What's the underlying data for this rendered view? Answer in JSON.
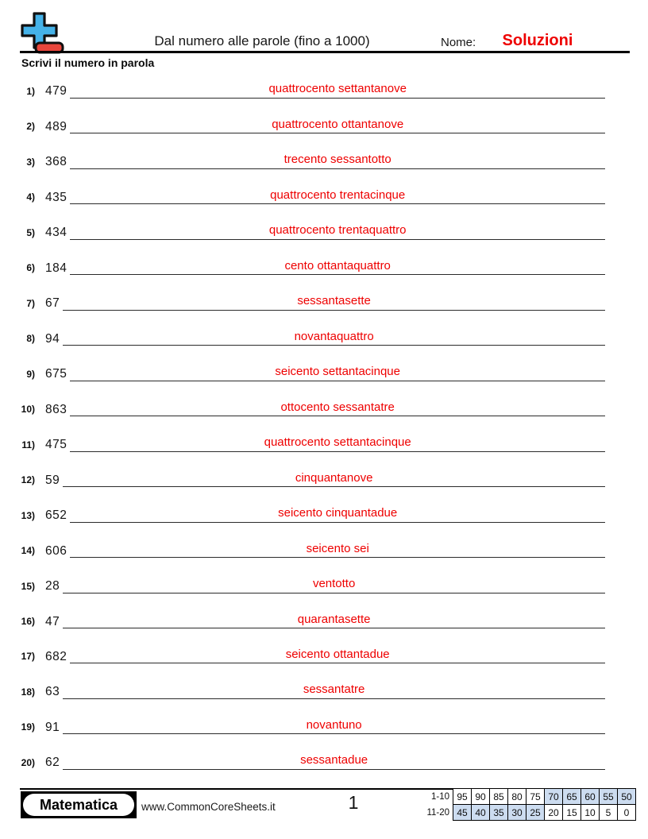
{
  "header": {
    "title": "Dal numero alle parole (fino a 1000)",
    "name_label": "Nome:",
    "name_value": "Soluzioni",
    "instruction": "Scrivi il numero in parola",
    "logo_plus_color": "#45b2e8",
    "logo_minus_color": "#e8463c"
  },
  "answer_color": "#ee0000",
  "problems": [
    {
      "num": "1)",
      "value": "479",
      "answer": "quattrocento settantanove"
    },
    {
      "num": "2)",
      "value": "489",
      "answer": "quattrocento ottantanove"
    },
    {
      "num": "3)",
      "value": "368",
      "answer": "trecento sessantotto"
    },
    {
      "num": "4)",
      "value": "435",
      "answer": "quattrocento trentacinque"
    },
    {
      "num": "5)",
      "value": "434",
      "answer": "quattrocento trentaquattro"
    },
    {
      "num": "6)",
      "value": "184",
      "answer": "cento ottantaquattro"
    },
    {
      "num": "7)",
      "value": "67",
      "answer": "sessantasette"
    },
    {
      "num": "8)",
      "value": "94",
      "answer": "novantaquattro"
    },
    {
      "num": "9)",
      "value": "675",
      "answer": "seicento settantacinque"
    },
    {
      "num": "10)",
      "value": "863",
      "answer": "ottocento sessantatre"
    },
    {
      "num": "11)",
      "value": "475",
      "answer": "quattrocento settantacinque"
    },
    {
      "num": "12)",
      "value": "59",
      "answer": "cinquantanove"
    },
    {
      "num": "13)",
      "value": "652",
      "answer": "seicento cinquantadue"
    },
    {
      "num": "14)",
      "value": "606",
      "answer": "seicento sei"
    },
    {
      "num": "15)",
      "value": "28",
      "answer": "ventotto"
    },
    {
      "num": "16)",
      "value": "47",
      "answer": "quarantasette"
    },
    {
      "num": "17)",
      "value": "682",
      "answer": "seicento ottantadue"
    },
    {
      "num": "18)",
      "value": "63",
      "answer": "sessantatre"
    },
    {
      "num": "19)",
      "value": "91",
      "answer": "novantuno"
    },
    {
      "num": "20)",
      "value": "62",
      "answer": "sessantadue"
    }
  ],
  "footer": {
    "subject_badge": "Matematica",
    "website": "www.CommonCoreSheets.it",
    "page_number": "1",
    "score_table": {
      "highlight_color": "#ccdcf0",
      "rows": [
        {
          "label": "1-10",
          "cells": [
            {
              "v": "95",
              "hl": false
            },
            {
              "v": "90",
              "hl": false
            },
            {
              "v": "85",
              "hl": false
            },
            {
              "v": "80",
              "hl": false
            },
            {
              "v": "75",
              "hl": false
            },
            {
              "v": "70",
              "hl": true
            },
            {
              "v": "65",
              "hl": true
            },
            {
              "v": "60",
              "hl": true
            },
            {
              "v": "55",
              "hl": true
            },
            {
              "v": "50",
              "hl": true
            }
          ]
        },
        {
          "label": "11-20",
          "cells": [
            {
              "v": "45",
              "hl": true
            },
            {
              "v": "40",
              "hl": true
            },
            {
              "v": "35",
              "hl": true
            },
            {
              "v": "30",
              "hl": true
            },
            {
              "v": "25",
              "hl": true
            },
            {
              "v": "20",
              "hl": false
            },
            {
              "v": "15",
              "hl": false
            },
            {
              "v": "10",
              "hl": false
            },
            {
              "v": "5",
              "hl": false
            },
            {
              "v": "0",
              "hl": false
            }
          ]
        }
      ]
    }
  }
}
